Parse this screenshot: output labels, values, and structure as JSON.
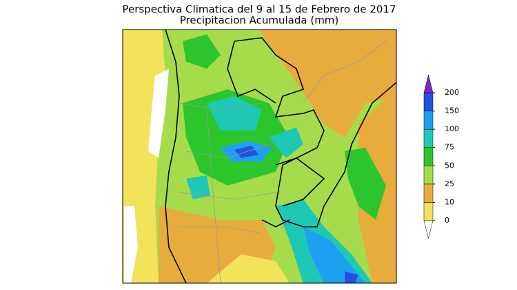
{
  "title": "Perspectiva Climatica del 9 al 15 de Febrero de 2017",
  "subtitle": "Precipitacion Acumulada (mm)",
  "legend": {
    "ticks": [
      0,
      10,
      25,
      50,
      75,
      100,
      150,
      200
    ],
    "colors": [
      "#f2e35a",
      "#e8ac3c",
      "#a6dc4c",
      "#2cc62c",
      "#1ec8b4",
      "#1ea0f0",
      "#2450e0",
      "#8a1ec8"
    ]
  }
}
